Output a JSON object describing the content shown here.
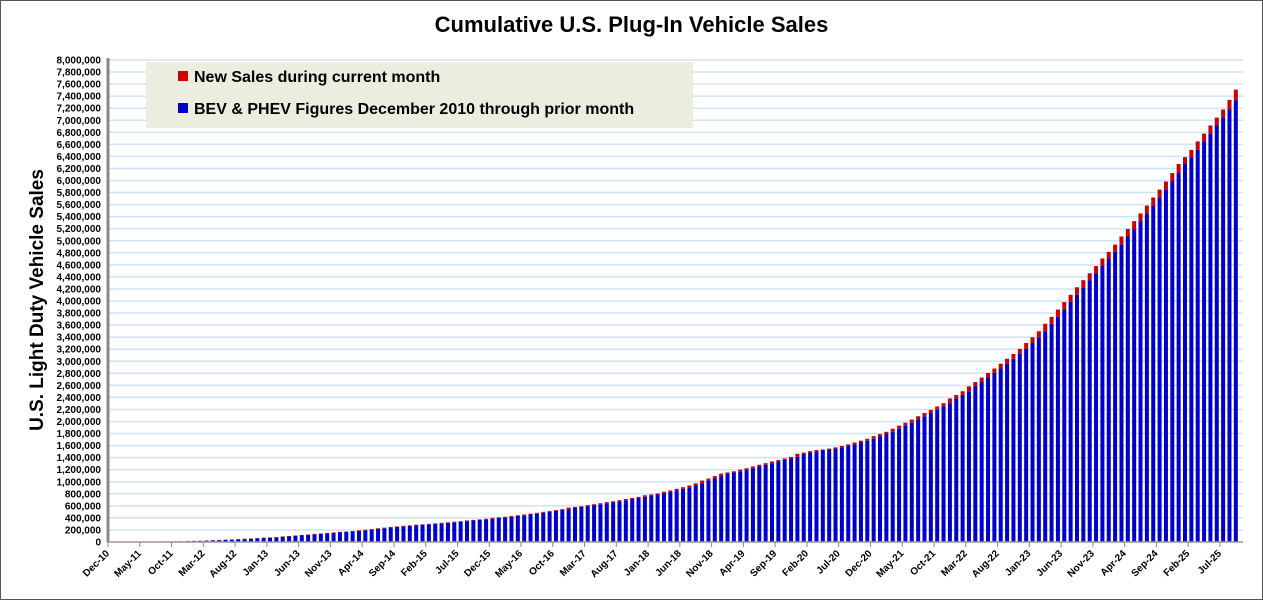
{
  "chart_data": {
    "type": "bar",
    "stacked": true,
    "title": "Cumulative U.S. Plug-In Vehicle Sales",
    "ylabel": "U.S. Light Duty Vehicle Sales",
    "xlabel": "",
    "ylim": [
      0,
      8000000
    ],
    "y_tick_step": 200000,
    "grid": true,
    "legend_position": "top-left",
    "x_first_month": "Dec-10",
    "x_last_month": "Sep-25",
    "x_tick_labels": [
      "Dec-10",
      "May-11",
      "Oct-11",
      "Mar-12",
      "Aug-12",
      "Jan-13",
      "Jun-13",
      "Nov-13",
      "Apr-14",
      "Sep-14",
      "Feb-15",
      "Jul-15",
      "Dec-15",
      "May-16",
      "Oct-16",
      "Mar-17",
      "Aug-17",
      "Jan-18",
      "Jun-18",
      "Nov-18",
      "Apr-19",
      "Sep-19",
      "Feb-20",
      "Jul-20",
      "Dec-20",
      "May-21",
      "Oct-21",
      "Mar-22",
      "Aug-22",
      "Jan-23",
      "Jun-23",
      "Nov-23",
      "Apr-24",
      "Sep-24",
      "Feb-25",
      "Jul-25"
    ],
    "series": [
      {
        "name": "New Sales during current month",
        "color": "#cc0000"
      },
      {
        "name": "BEV & PHEV Figures December 2010 through prior month",
        "color": "#0000cc"
      }
    ],
    "cumulative_totals": [
      300,
      800,
      1400,
      2300,
      3100,
      4200,
      5900,
      6800,
      7700,
      9500,
      11400,
      13200,
      17800,
      19200,
      21800,
      26500,
      29900,
      34600,
      39400,
      43100,
      48100,
      54400,
      59700,
      65100,
      72200,
      76600,
      82900,
      92300,
      99700,
      107800,
      116100,
      123700,
      134700,
      142700,
      150700,
      159100,
      168400,
      174400,
      182200,
      193400,
      203500,
      215800,
      227100,
      238300,
      250700,
      259500,
      268500,
      277600,
      287600,
      293300,
      301000,
      309700,
      317700,
      327100,
      337000,
      346500,
      358000,
      367100,
      376400,
      384900,
      402900,
      410000,
      419300,
      432700,
      444500,
      456500,
      469700,
      484300,
      500700,
      515600,
      529800,
      546200,
      571000,
      582100,
      594300,
      612800,
      626200,
      643000,
      661100,
      676800,
      694000,
      714700,
      731600,
      748800,
      774900,
      789300,
      806500,
      834300,
      856800,
      883200,
      909300,
      938700,
      973500,
      1019700,
      1053600,
      1093600,
      1136200,
      1154700,
      1173900,
      1201700,
      1225000,
      1253600,
      1282300,
      1307900,
      1336900,
      1361900,
      1386400,
      1412400,
      1464300,
      1485300,
      1507800,
      1526300,
      1535600,
      1550400,
      1570200,
      1594200,
      1621000,
      1651500,
      1682200,
      1713700,
      1757700,
      1791700,
      1828700,
      1880700,
      1930700,
      1979700,
      2032700,
      2087700,
      2141700,
      2193700,
      2248700,
      2304700,
      2382700,
      2440700,
      2502700,
      2582700,
      2654700,
      2729700,
      2805700,
      2879700,
      2959700,
      3041700,
      3121700,
      3205700,
      3302700,
      3397700,
      3497700,
      3622700,
      3737700,
      3857700,
      3982700,
      4102700,
      4227700,
      4345700,
      4460700,
      4580700,
      4705700,
      4815700,
      4935700,
      5070700,
      5195700,
      5325700,
      5453700,
      5583700,
      5718700,
      5848700,
      5983700,
      6123700,
      6273700,
      6388700,
      6508700,
      6648700,
      6778700,
      6913700,
      7043700,
      7178700,
      7338700,
      7508700
    ]
  }
}
